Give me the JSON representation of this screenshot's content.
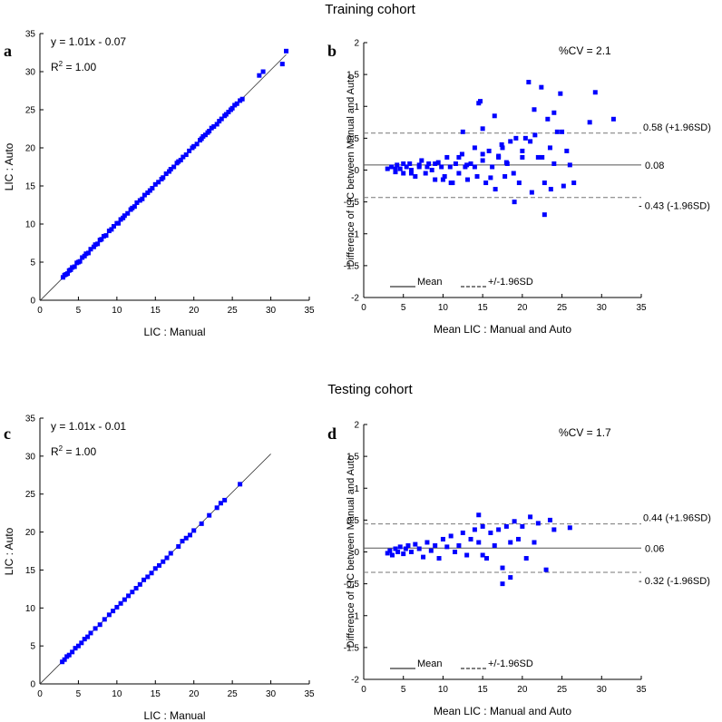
{
  "figure": {
    "titles": [
      "Training cohort",
      "Testing cohort"
    ]
  },
  "chart_data": [
    {
      "panel": "a",
      "type": "scatter",
      "xlabel": "LIC : Manual",
      "ylabel": "LIC : Auto",
      "xlim": [
        0,
        35
      ],
      "ylim": [
        0,
        35
      ],
      "xticks": [
        0,
        5,
        10,
        15,
        20,
        25,
        30,
        35
      ],
      "yticks": [
        0,
        5,
        10,
        15,
        20,
        25,
        30,
        35
      ],
      "equation": "y = 1.01x - 0.07",
      "r2_prefix": "R",
      "r2_sup": "2",
      "r2_suffix": " = 1.00",
      "regression": {
        "slope": 1.01,
        "intercept": -0.07,
        "x_range": [
          0,
          32
        ]
      },
      "color": "#0000ff",
      "x": [
        3,
        3.2,
        3.4,
        3.6,
        3.8,
        4,
        4.2,
        4.5,
        4.8,
        5,
        5.2,
        5.5,
        5.8,
        6,
        6.3,
        6.6,
        7,
        7.2,
        7.5,
        7.8,
        8,
        8.3,
        8.6,
        9,
        9.3,
        9.6,
        10,
        10.2,
        10.5,
        10.8,
        11,
        11.4,
        11.8,
        12,
        12.3,
        12.6,
        13,
        13.3,
        13.6,
        14,
        14.3,
        14.6,
        15,
        15.4,
        15.8,
        16,
        16.4,
        16.8,
        17,
        17.4,
        17.8,
        18,
        18.3,
        18.6,
        19,
        19.4,
        19.8,
        20,
        20.4,
        20.8,
        21,
        21.2,
        21.5,
        21.8,
        22,
        22.3,
        22.6,
        23,
        23.3,
        23.6,
        24,
        24.2,
        24.5,
        24.8,
        25,
        25.3,
        25.6,
        26,
        26.3,
        28.5,
        29,
        31.5,
        32
      ],
      "y": [
        3,
        3.3,
        3.4,
        3.5,
        3.9,
        4,
        4.3,
        4.4,
        4.9,
        5,
        5.1,
        5.6,
        5.8,
        6.1,
        6.2,
        6.7,
        7,
        7.3,
        7.4,
        7.9,
        8,
        8.4,
        8.5,
        9.1,
        9.3,
        9.7,
        10.1,
        10.1,
        10.6,
        10.8,
        11.1,
        11.4,
        11.9,
        12.1,
        12.3,
        12.8,
        13.1,
        13.3,
        13.8,
        14.1,
        14.4,
        14.7,
        15.2,
        15.5,
        15.9,
        16.1,
        16.6,
        16.9,
        17.2,
        17.5,
        18,
        18.2,
        18.4,
        18.8,
        19.1,
        19.6,
        20,
        20.2,
        20.5,
        21,
        21.2,
        21.5,
        21.7,
        22,
        22.2,
        22.6,
        22.8,
        23.1,
        23.5,
        23.8,
        24.2,
        24.4,
        24.7,
        25,
        25.2,
        25.6,
        25.8,
        26.2,
        26.4,
        29.5,
        30,
        31,
        32.7
      ]
    },
    {
      "panel": "b",
      "type": "scatter",
      "xlabel": "Mean LIC : Manual and Auto",
      "ylabel": "Difference of LIC between Manual and Auto",
      "xlim": [
        0,
        35
      ],
      "ylim": [
        -2,
        2
      ],
      "xticks": [
        0,
        5,
        10,
        15,
        20,
        25,
        30,
        35
      ],
      "yticks": [
        -2,
        -1.5,
        -1,
        -0.5,
        0,
        0.5,
        1,
        1.5,
        2
      ],
      "cv_label": "%CV = 2.1",
      "mean": 0.08,
      "upper": 0.58,
      "lower": -0.43,
      "mean_label": "0.08",
      "upper_label": "0.58 (+1.96SD)",
      "lower_label": "- 0.43 (-1.96SD)",
      "legend_mean": "Mean",
      "legend_sd": "+/-1.96SD",
      "color": "#0000ff",
      "x": [
        3,
        3.5,
        4,
        4.2,
        4.6,
        5,
        5.4,
        5.8,
        6,
        6.5,
        7,
        7.3,
        7.8,
        8.2,
        8.6,
        9,
        9.4,
        9.8,
        10.2,
        10.5,
        10.9,
        11.2,
        11.6,
        12,
        12.4,
        12.8,
        13.1,
        13.5,
        14,
        14.3,
        14.7,
        15,
        15.4,
        15.8,
        16.2,
        16.6,
        17,
        17.4,
        17.8,
        18.1,
        18.5,
        18.9,
        19.2,
        19.6,
        20,
        20.4,
        20.8,
        21.2,
        21.6,
        22,
        22.4,
        22.8,
        23.2,
        23.6,
        24,
        24.4,
        24.8,
        25.2,
        25.6,
        26,
        26.5,
        29.2,
        31.5,
        28.5,
        25,
        24,
        22.5,
        21,
        20,
        19,
        18,
        17,
        16,
        15,
        14,
        13,
        12,
        11,
        10,
        9,
        8,
        7,
        6,
        5,
        4,
        14.5,
        15,
        16.5,
        17.5,
        12.5,
        21.5,
        22.8,
        23.5
      ],
      "y": [
        0.02,
        0.05,
        -0.03,
        0.08,
        0.02,
        -0.05,
        0.05,
        0.1,
        0,
        -0.1,
        0.05,
        0.15,
        -0.05,
        0.1,
        0,
        -0.15,
        0.12,
        0.05,
        -0.1,
        0.2,
        0.05,
        -0.2,
        0.1,
        -0.05,
        0.25,
        0.05,
        -0.15,
        0.1,
        0.35,
        -0.1,
        1.08,
        0.15,
        -0.2,
        0.3,
        0.05,
        -0.3,
        0.2,
        0.4,
        -0.1,
        0.1,
        0.45,
        -0.05,
        0.5,
        -0.2,
        0.3,
        0.5,
        1.38,
        -0.35,
        0.55,
        0.2,
        1.3,
        -0.2,
        0.8,
        -0.3,
        0.1,
        0.6,
        1.2,
        -0.25,
        0.3,
        0.08,
        -0.2,
        1.22,
        0.8,
        0.75,
        0.6,
        0.9,
        0.2,
        0.45,
        0.2,
        -0.5,
        0.12,
        0.22,
        -0.12,
        0.25,
        0.05,
        0.08,
        0.2,
        -0.2,
        -0.15,
        0.1,
        0.05,
        0.08,
        -0.05,
        0.1,
        0.02,
        1.05,
        0.65,
        0.85,
        0.35,
        0.6,
        0.95,
        -0.7,
        0.35
      ]
    },
    {
      "panel": "c",
      "type": "scatter",
      "xlabel": "LIC : Manual",
      "ylabel": "LIC : Auto",
      "xlim": [
        0,
        35
      ],
      "ylim": [
        0,
        35
      ],
      "xticks": [
        0,
        5,
        10,
        15,
        20,
        25,
        30,
        35
      ],
      "yticks": [
        0,
        5,
        10,
        15,
        20,
        25,
        30,
        35
      ],
      "equation": "y = 1.01x - 0.01",
      "r2_prefix": "R",
      "r2_sup": "2",
      "r2_suffix": " = 1.00",
      "regression": {
        "slope": 1.01,
        "intercept": -0.01,
        "x_range": [
          0,
          30
        ]
      },
      "color": "#0000ff",
      "x": [
        2.9,
        3.2,
        3.5,
        3.8,
        4.2,
        4.6,
        5,
        5.4,
        5.8,
        6.2,
        6.6,
        7.2,
        7.8,
        8.4,
        9,
        9.5,
        10,
        10.5,
        11,
        11.5,
        12,
        12.5,
        13,
        13.5,
        14,
        14.5,
        15,
        15.5,
        16,
        16.5,
        17,
        18,
        18.5,
        19,
        19.5,
        20,
        21,
        22,
        23,
        23.5,
        24,
        26
      ],
      "y": [
        2.9,
        3.2,
        3.6,
        3.8,
        4.2,
        4.7,
        5,
        5.4,
        5.9,
        6.2,
        6.7,
        7.3,
        7.8,
        8.5,
        9.1,
        9.6,
        10.1,
        10.6,
        11.1,
        11.6,
        12.1,
        12.6,
        13.1,
        13.7,
        14.1,
        14.6,
        15.2,
        15.6,
        16.1,
        16.6,
        17.2,
        18.1,
        18.8,
        19.2,
        19.6,
        20.2,
        21.1,
        22.2,
        23.2,
        23.8,
        24.2,
        26.3
      ]
    },
    {
      "panel": "d",
      "type": "scatter",
      "xlabel": "Mean LIC : Manual and Auto",
      "ylabel": "Difference of LIC between Manual and Auto",
      "xlim": [
        0,
        35
      ],
      "ylim": [
        -2,
        2
      ],
      "xticks": [
        0,
        5,
        10,
        15,
        20,
        25,
        30,
        35
      ],
      "yticks": [
        -2,
        -1.5,
        -1,
        -0.5,
        0,
        0.5,
        1,
        1.5,
        2
      ],
      "cv_label": "%CV = 1.7",
      "mean": 0.06,
      "upper": 0.44,
      "lower": -0.32,
      "mean_label": "0.06",
      "upper_label": "0.44 (+1.96SD)",
      "lower_label": "- 0.32 (-1.96SD)",
      "legend_mean": "Mean",
      "legend_sd": "+/-1.96SD",
      "color": "#0000ff",
      "x": [
        3,
        3.3,
        3.6,
        4,
        4.3,
        4.6,
        5,
        5.3,
        5.6,
        6,
        6.5,
        7,
        7.5,
        8,
        8.5,
        9,
        9.5,
        10,
        10.5,
        11,
        11.5,
        12,
        12.5,
        13,
        13.5,
        14,
        14.5,
        15,
        15.5,
        16,
        16.5,
        17,
        17.5,
        18,
        18.5,
        19,
        19.5,
        20,
        21,
        22,
        23,
        23.5,
        24,
        26,
        14.5,
        20.5,
        21.5,
        17.5,
        18.5,
        15
      ],
      "y": [
        -0.02,
        0.02,
        -0.05,
        0.05,
        0,
        0.08,
        -0.03,
        0.05,
        0.1,
        0,
        0.12,
        0.05,
        -0.08,
        0.15,
        0.02,
        0.1,
        -0.1,
        0.2,
        0.08,
        0.25,
        0,
        0.1,
        0.3,
        -0.05,
        0.2,
        0.35,
        0.15,
        0.4,
        -0.1,
        0.3,
        0.1,
        0.35,
        -0.25,
        0.4,
        0.15,
        0.48,
        0.2,
        0.4,
        0.55,
        0.45,
        -0.28,
        0.5,
        0.35,
        0.38,
        0.58,
        -0.1,
        0.15,
        -0.5,
        -0.4,
        -0.05
      ]
    }
  ]
}
